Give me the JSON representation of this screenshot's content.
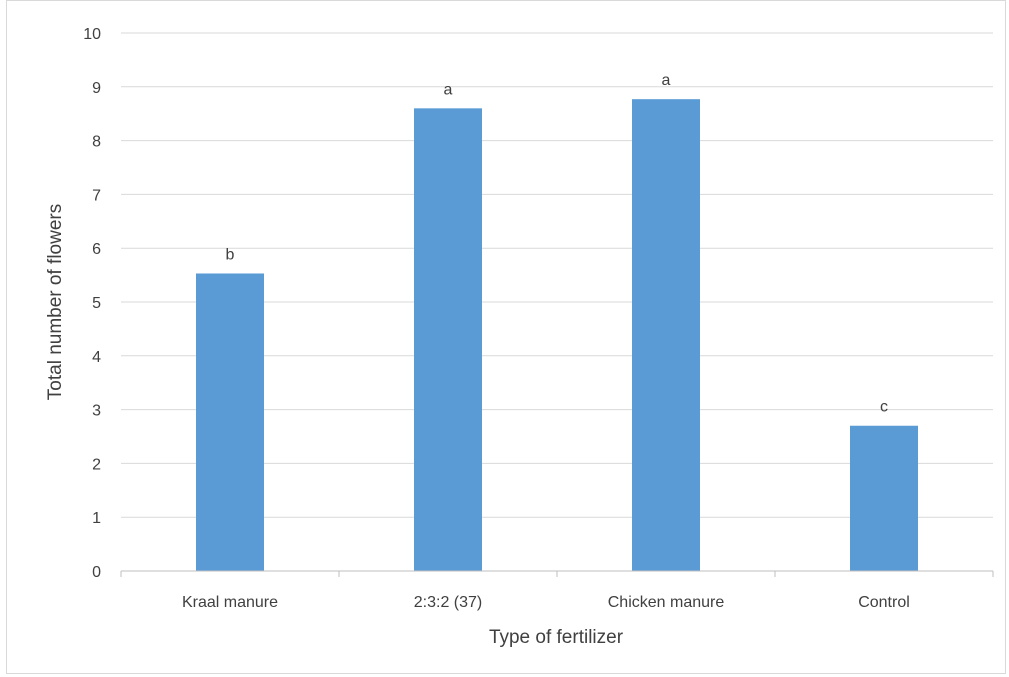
{
  "chart_data": {
    "type": "bar",
    "title": "",
    "xlabel": "Type of fertilizer",
    "ylabel": "Total number  of flowers",
    "categories": [
      "Kraal manure",
      "2:3:2 (37)",
      "Chicken manure",
      "Control"
    ],
    "values": [
      5.53,
      8.6,
      8.77,
      2.7
    ],
    "data_labels": [
      "b",
      "a",
      "a",
      "c"
    ],
    "ylim": [
      0,
      10
    ],
    "yticks": [
      "0",
      "1",
      "2",
      "3",
      "4",
      "5",
      "6",
      "7",
      "8",
      "9",
      "10"
    ],
    "grid": true,
    "legend": "none",
    "bar_color": "#5b9bd5",
    "grid_color": "#d9d9d9",
    "axis_color": "#bfbfbf",
    "text_color": "#404040"
  }
}
